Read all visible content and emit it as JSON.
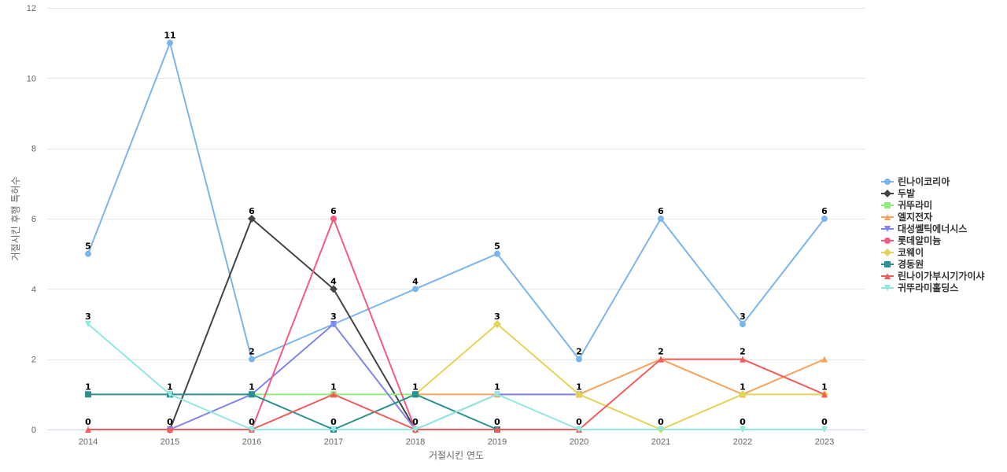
{
  "chart_data": {
    "type": "line",
    "x": [
      "2014",
      "2015",
      "2016",
      "2017",
      "2018",
      "2019",
      "2020",
      "2021",
      "2022",
      "2023"
    ],
    "xlabel": "거절시킨 연도",
    "ylabel": "거절시킨 후행 특허수",
    "ylim": [
      0,
      12
    ],
    "yticks": [
      0,
      2,
      4,
      6,
      8,
      10,
      12
    ],
    "grid": true,
    "legend_position": "right",
    "series": [
      {
        "name": "린나이코리아",
        "color": "#7cb5ec",
        "marker": "circle",
        "values": [
          5,
          11,
          2,
          3,
          4,
          5,
          2,
          6,
          3,
          6
        ],
        "labels": true
      },
      {
        "name": "두발",
        "color": "#434348",
        "marker": "diamond",
        "values": [
          null,
          0,
          6,
          4,
          0,
          null,
          null,
          null,
          null,
          null
        ],
        "labels": true
      },
      {
        "name": "귀뚜라미",
        "color": "#90ed7d",
        "marker": "square",
        "values": [
          null,
          null,
          1,
          1,
          1,
          null,
          null,
          null,
          null,
          null
        ],
        "labels": false
      },
      {
        "name": "엘지전자",
        "color": "#f7a35c",
        "marker": "triangle",
        "values": [
          null,
          null,
          null,
          null,
          1,
          1,
          1,
          2,
          1,
          2
        ],
        "labels": false
      },
      {
        "name": "대성쎌틱에너시스",
        "color": "#8085e9",
        "marker": "triangle-down",
        "values": [
          null,
          0,
          1,
          3,
          0,
          1,
          1,
          null,
          null,
          null
        ],
        "labels": false
      },
      {
        "name": "롯데알미늄",
        "color": "#f15c80",
        "marker": "circle",
        "values": [
          null,
          null,
          0,
          6,
          0,
          null,
          null,
          null,
          null,
          null
        ],
        "labels": true
      },
      {
        "name": "코웨이",
        "color": "#e4d354",
        "marker": "diamond",
        "values": [
          null,
          null,
          null,
          null,
          1,
          3,
          1,
          0,
          1,
          1
        ],
        "labels": true
      },
      {
        "name": "경동원",
        "color": "#2b908f",
        "marker": "square",
        "values": [
          1,
          1,
          1,
          0,
          1,
          0,
          null,
          null,
          null,
          null
        ],
        "labels": true
      },
      {
        "name": "린나이가부시기가이샤",
        "color": "#f45b5b",
        "marker": "triangle",
        "values": [
          0,
          0,
          0,
          1,
          0,
          0,
          0,
          2,
          2,
          1
        ],
        "labels": true
      },
      {
        "name": "귀뚜라미홀딩스",
        "color": "#91e8e1",
        "marker": "triangle-down",
        "values": [
          3,
          1,
          0,
          0,
          0,
          1,
          0,
          0,
          0,
          0
        ],
        "labels": true
      }
    ]
  }
}
